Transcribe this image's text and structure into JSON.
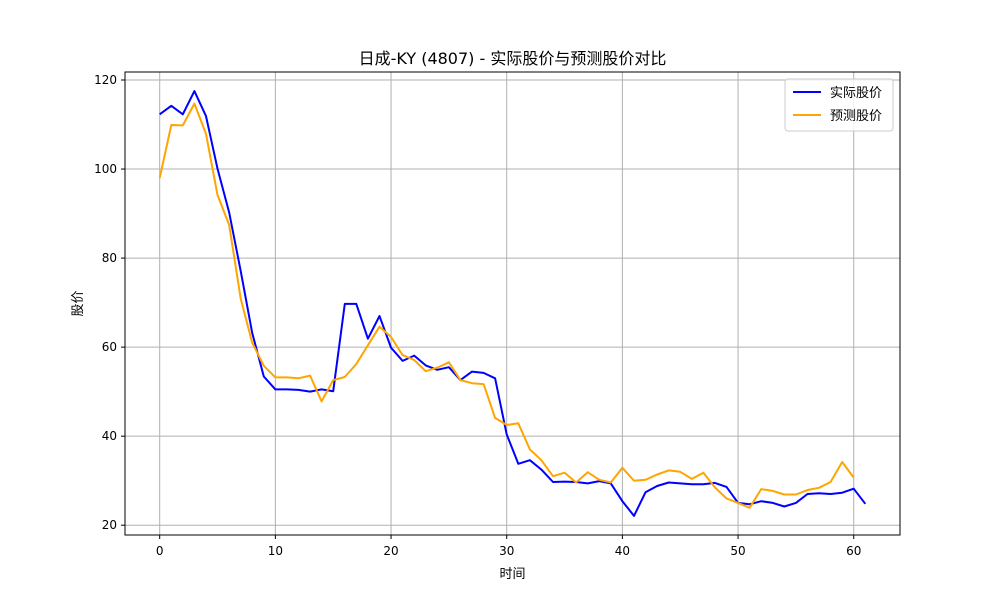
{
  "chart_data": {
    "type": "line",
    "title": "日成-KY (4807) - 实际股价与预测股价对比",
    "xlabel": "时间",
    "ylabel": "股价",
    "xlim": [
      -3,
      64
    ],
    "ylim": [
      17.8,
      121.8
    ],
    "xticks": [
      0,
      10,
      20,
      30,
      40,
      50,
      60
    ],
    "yticks": [
      20,
      40,
      60,
      80,
      100,
      120
    ],
    "grid": true,
    "legend_position": "top-right",
    "series": [
      {
        "name": "实际股价",
        "color": "#0000ff",
        "x": [
          0,
          1,
          2,
          3,
          4,
          5,
          6,
          7,
          8,
          9,
          10,
          11,
          12,
          13,
          14,
          15,
          16,
          17,
          18,
          19,
          20,
          21,
          22,
          23,
          24,
          25,
          26,
          27,
          28,
          29,
          30,
          31,
          32,
          33,
          34,
          35,
          36,
          37,
          38,
          39,
          40,
          41,
          42,
          43,
          44,
          45,
          46,
          47,
          48,
          49,
          50,
          51,
          52,
          53,
          54,
          55,
          56,
          57,
          58,
          59,
          60,
          61
        ],
        "values": [
          112.3,
          114.2,
          112.3,
          117.5,
          111.9,
          100.1,
          90.3,
          77.1,
          63.2,
          53.4,
          50.5,
          50.5,
          50.4,
          50.0,
          50.5,
          50.1,
          69.7,
          69.7,
          61.9,
          67.0,
          59.9,
          56.9,
          58.1,
          55.9,
          54.9,
          55.5,
          52.6,
          54.5,
          54.2,
          53.0,
          40.4,
          33.8,
          34.6,
          32.5,
          29.7,
          29.8,
          29.7,
          29.4,
          29.9,
          29.4,
          25.4,
          22.1,
          27.4,
          28.8,
          29.6,
          29.4,
          29.2,
          29.2,
          29.5,
          28.6,
          25.0,
          24.7,
          25.4,
          25.0,
          24.2,
          25.0,
          27.0,
          27.2,
          27.0,
          27.3,
          28.2,
          24.8
        ]
      },
      {
        "name": "预测股价",
        "color": "#ffa500",
        "x": [
          0,
          1,
          2,
          3,
          4,
          5,
          6,
          7,
          8,
          9,
          10,
          11,
          12,
          13,
          14,
          15,
          16,
          17,
          18,
          19,
          20,
          21,
          22,
          23,
          24,
          25,
          26,
          27,
          28,
          29,
          30,
          31,
          32,
          33,
          34,
          35,
          36,
          37,
          38,
          39,
          40,
          41,
          42,
          43,
          44,
          45,
          46,
          47,
          48,
          49,
          50,
          51,
          52,
          53,
          54,
          55,
          56,
          57,
          58,
          59,
          60
        ],
        "values": [
          98.0,
          109.9,
          109.8,
          114.7,
          107.9,
          94.2,
          87.5,
          70.9,
          61.0,
          55.8,
          53.2,
          53.2,
          53.0,
          53.6,
          47.8,
          52.6,
          53.3,
          56.2,
          60.4,
          64.6,
          62.3,
          58.2,
          57.1,
          54.6,
          55.4,
          56.6,
          52.6,
          51.9,
          51.7,
          44.1,
          42.5,
          42.9,
          37.0,
          34.6,
          31.0,
          31.8,
          29.6,
          31.9,
          30.2,
          29.6,
          32.9,
          30.0,
          30.2,
          31.4,
          32.3,
          32.0,
          30.4,
          31.8,
          28.5,
          26.0,
          25.0,
          23.9,
          28.1,
          27.7,
          26.9,
          26.9,
          27.9,
          28.4,
          29.7,
          34.2,
          30.7
        ]
      }
    ]
  }
}
